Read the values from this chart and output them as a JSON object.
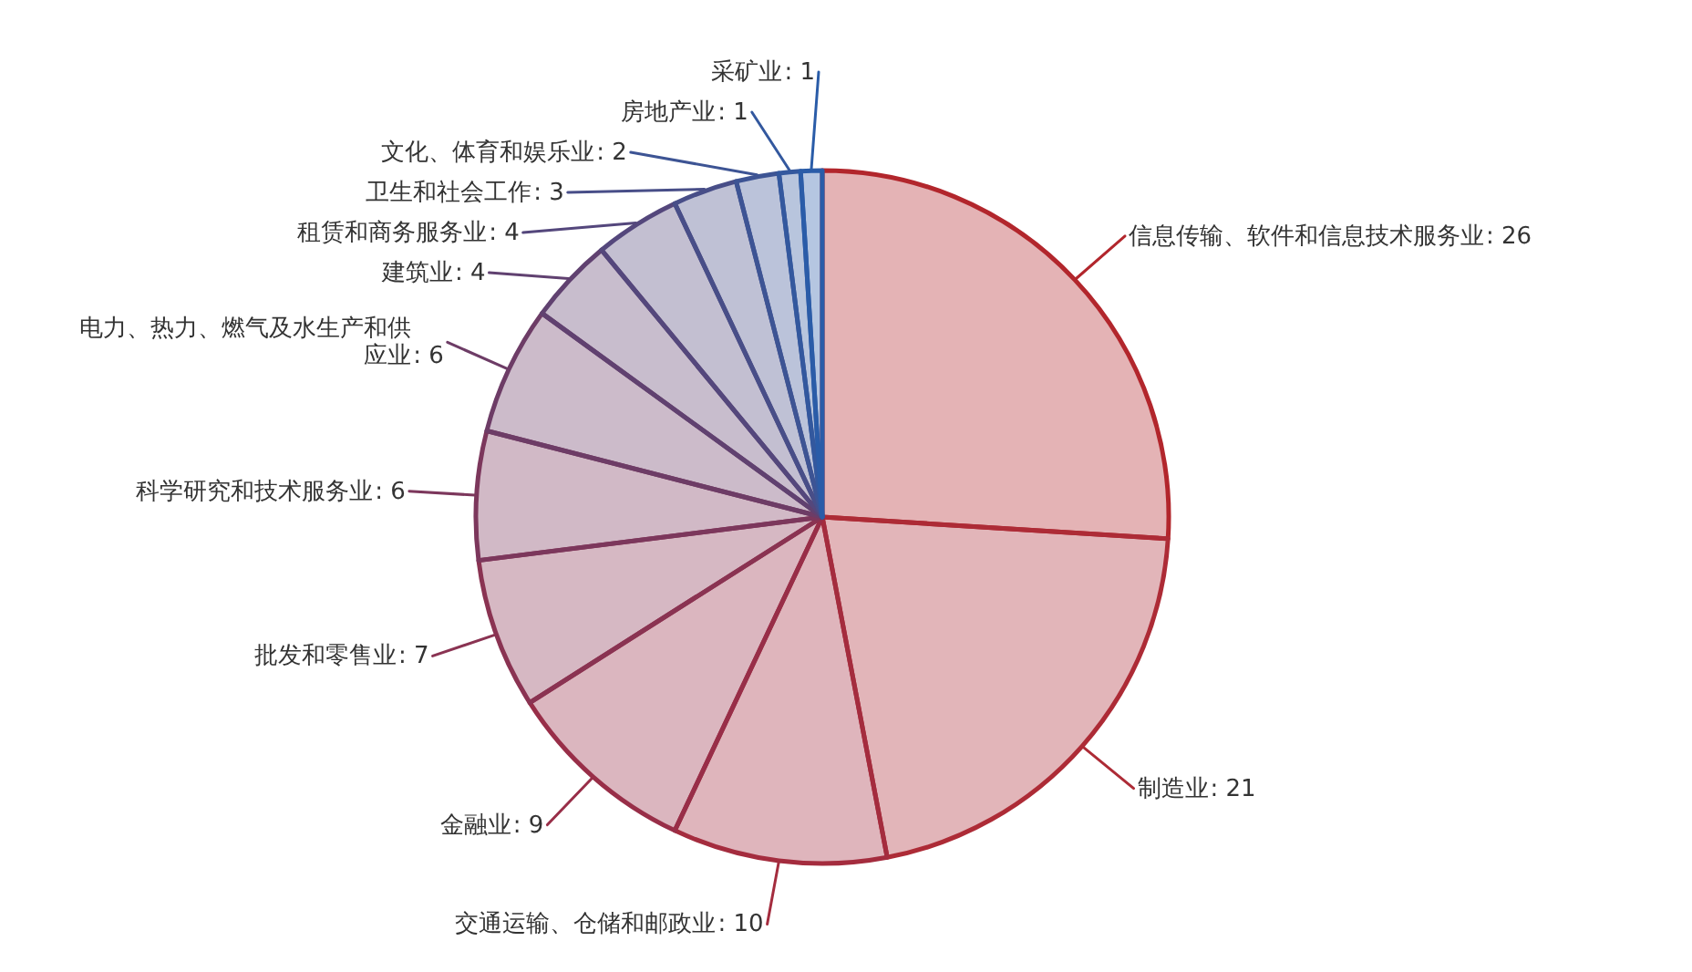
{
  "chart_data": {
    "type": "pie",
    "categories": [
      "信息传输、软件和信息技术服务业",
      "制造业",
      "交通运输、仓储和邮政业",
      "金融业",
      "批发和零售业",
      "科学研究和技术服务业",
      "电力、热力、燃气及水生产和供应业",
      "建筑业",
      "租赁和商务服务业",
      "卫生和社会工作",
      "文化、体育和娱乐业",
      "房地产业",
      "采矿业"
    ],
    "values": [
      26,
      21,
      10,
      9,
      7,
      6,
      6,
      4,
      4,
      3,
      2,
      1,
      1
    ],
    "value_labels": [
      ": 26",
      ": 21",
      ": 10",
      ": 9",
      ": 7",
      ": 6",
      ": 6",
      ": 4",
      ": 4",
      ": 3",
      ": 2",
      ": 1",
      ": 1"
    ],
    "colors": [
      "#b2262c",
      "#ad2b36",
      "#a42c3e",
      "#982e48",
      "#8a3352",
      "#7c375c",
      "#6d3c66",
      "#604170",
      "#54477c",
      "#484e88",
      "#3d5494",
      "#33589e",
      "#2a5ca8"
    ]
  }
}
